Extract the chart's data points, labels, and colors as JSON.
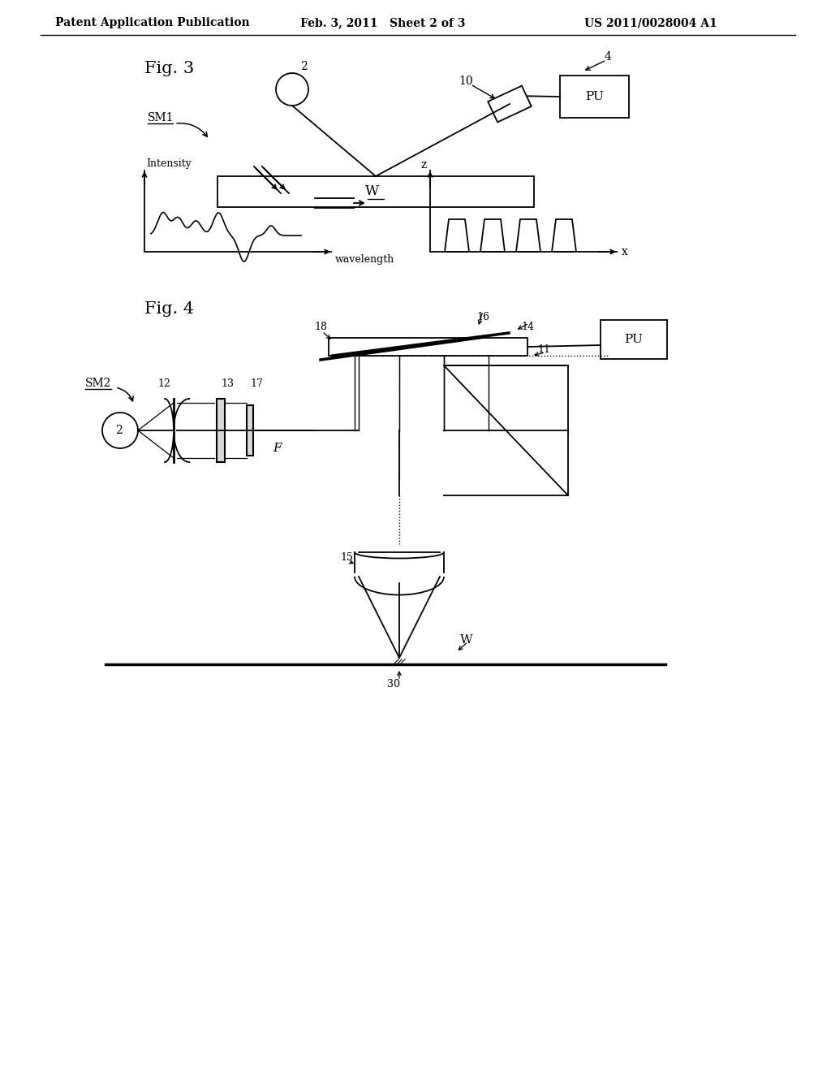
{
  "header_left": "Patent Application Publication",
  "header_mid": "Feb. 3, 2011   Sheet 2 of 3",
  "header_right": "US 2011/0028004 A1",
  "fig3_label": "Fig. 3",
  "fig4_label": "Fig. 4",
  "background": "#ffffff",
  "line_color": "#000000",
  "text_color": "#000000",
  "lw_main": 1.3,
  "lw_thick": 2.0
}
